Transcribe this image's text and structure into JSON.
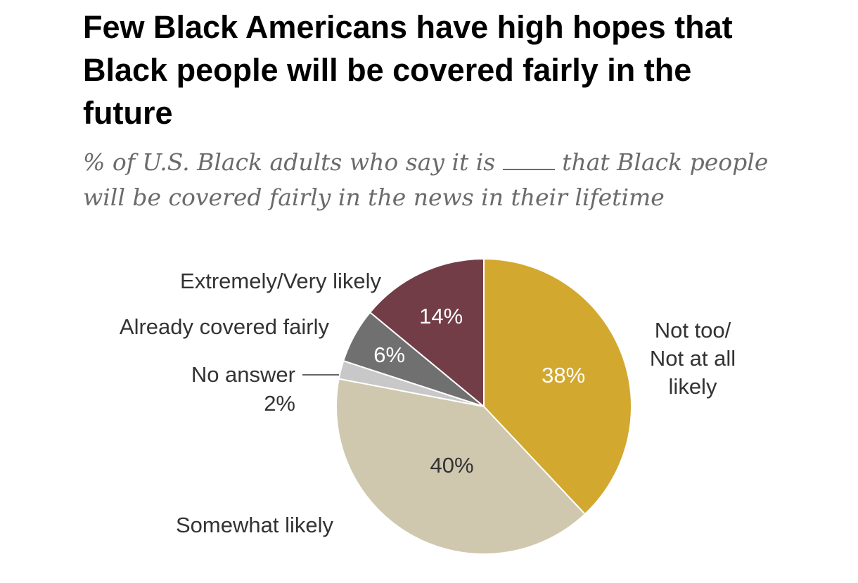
{
  "title": "Few Black Americans have high hopes that Black people will be covered fairly in the future",
  "subtitle": {
    "before": "% of U.S. Black adults who say it is",
    "after": "that Black people will be covered fairly in the news in their lifetime"
  },
  "chart_data": {
    "type": "pie",
    "slices": [
      {
        "name": "Not too/ Not at all likely",
        "lines": [
          "Not too/",
          "Not at all",
          "likely"
        ],
        "value": 38,
        "label": "38%",
        "color": "#d3a82f",
        "text_color": "#ffffff"
      },
      {
        "name": "Somewhat likely",
        "lines": [
          "Somewhat likely"
        ],
        "value": 40,
        "label": "40%",
        "color": "#cfc8ae",
        "text_color": "#333333"
      },
      {
        "name": "No answer",
        "lines": [
          "No answer"
        ],
        "value": 2,
        "label": "2%",
        "color": "#c8c8c8",
        "text_color": "#333333"
      },
      {
        "name": "Already covered fairly",
        "lines": [
          "Already covered fairly"
        ],
        "value": 6,
        "label": "6%",
        "color": "#707070",
        "text_color": "#ffffff"
      },
      {
        "name": "Extremely/Very likely",
        "lines": [
          "Extremely/Very likely"
        ],
        "value": 14,
        "label": "14%",
        "color": "#733d48",
        "text_color": "#ffffff"
      }
    ]
  }
}
